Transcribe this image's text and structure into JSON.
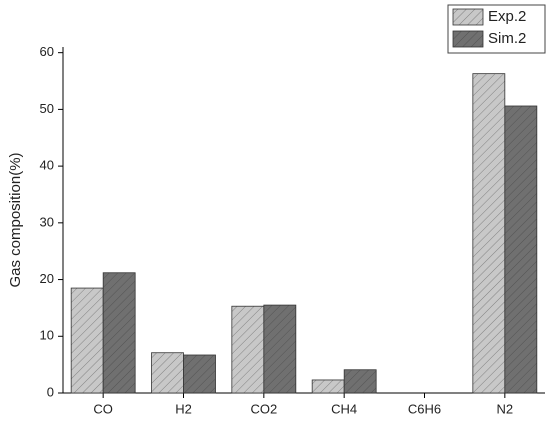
{
  "chart_data": {
    "type": "bar",
    "y_label": "Gas composition(%)",
    "categories": [
      "CO",
      "H2",
      "CO2",
      "CH4",
      "C6H6",
      "N2"
    ],
    "series": [
      {
        "name": "Exp.2",
        "color": "#c8c8c8",
        "values": [
          18.5,
          7.1,
          15.3,
          2.3,
          0,
          56.3
        ]
      },
      {
        "name": "Sim.2",
        "color": "#707070",
        "values": [
          21.2,
          6.7,
          15.5,
          4.1,
          0,
          50.6
        ]
      }
    ],
    "ylim": [
      0,
      61
    ],
    "yticks": [
      0,
      10,
      20,
      30,
      40,
      50,
      60
    ],
    "legend": "top-right"
  }
}
